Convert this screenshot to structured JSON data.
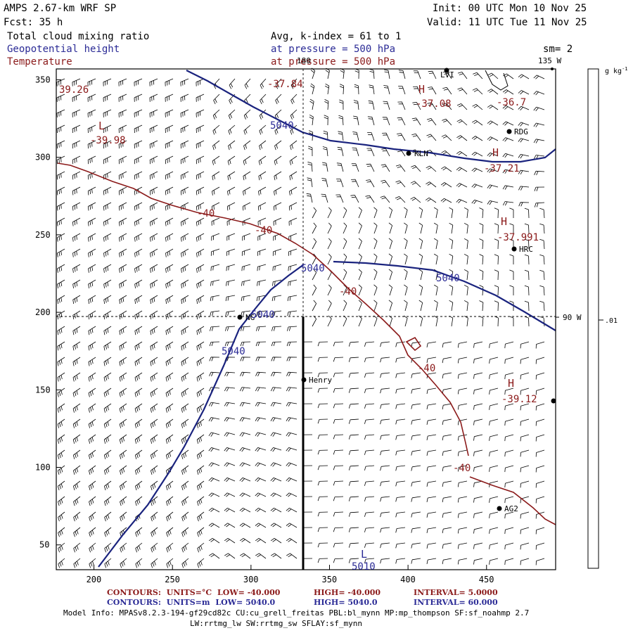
{
  "header": {
    "model": "AMPS 2.67-km WRF SP",
    "fcst": "Fcst:    35 h",
    "init": "Init: 00 UTC Mon 10 Nov 25",
    "valid": "Valid: 11 UTC Tue 11 Nov 25",
    "field1": "Total cloud mixing ratio",
    "field2": "Geopotential height",
    "field3": "Temperature",
    "avg": "Avg, k-index =  61 to   1",
    "pres1": "at pressure =  500 hPa",
    "pres2": "at pressure =  500 hPa",
    "sm": "sm= 2"
  },
  "colorbar": {
    "unit": "g kg",
    "unit_sup": "-1",
    "value": ".01"
  },
  "map": {
    "x_ticks": [
      "200",
      "250",
      "300",
      "350",
      "400",
      "450"
    ],
    "y_ticks": [
      "350",
      "300",
      "250",
      "200",
      "150",
      "100",
      "50"
    ],
    "lon_labels": {
      "top": "180",
      "top_right": "135 W",
      "right": "90 W"
    },
    "stations": [
      {
        "name": "LVI"
      },
      {
        "name": "RDG"
      },
      {
        "name": "KLN"
      },
      {
        "name": "HRC"
      },
      {
        "name": "NG"
      },
      {
        "name": "Henry"
      },
      {
        "name": "AG2"
      }
    ],
    "height_labels": [
      "5040",
      "5040",
      "5040",
      "5040",
      "5040",
      "5010"
    ],
    "temp_labels": [
      "-37.84",
      "-37.08",
      "-36.7",
      "-37.21",
      "-37.991",
      "-39.12",
      "-39.98",
      "39.26",
      "-40",
      "-40",
      "-40",
      "-40",
      "-40"
    ],
    "hl_marks": [
      "L",
      "H",
      "H",
      "H",
      "H",
      "L"
    ]
  },
  "footer": {
    "row1": {
      "label": "CONTOURS:",
      "units": "UNITS=°C",
      "low": "LOW= -40.000",
      "high": "HIGH= -40.000",
      "interval": "INTERVAL=   5.0000"
    },
    "row2": {
      "label": "CONTOURS:",
      "units": "UNITS=m",
      "low": "LOW=  5040.0",
      "high": "HIGH=  5040.0",
      "interval": "INTERVAL=  60.000"
    },
    "model_info": "Model Info: MPASv8.2.3-194-gf29cd82c CU:cu_grell_freitas PBL:bl_mynn MP:mp_thompson SF:sf_noahmp 2.7",
    "model_info2": "LW:rrtmg_lw SW:rrtmg_sw SFLAY:sf_mynn"
  },
  "colors": {
    "height": "#1a237e",
    "temp": "#8b1a1a",
    "frame": "#000000"
  }
}
